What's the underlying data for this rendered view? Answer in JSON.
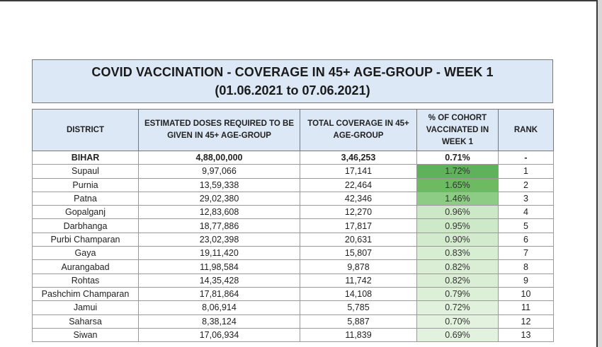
{
  "title": {
    "line1": "COVID VACCINATION -  COVERAGE IN 45+ AGE-GROUP - WEEK 1",
    "line2": "(01.06.2021 to 07.06.2021)"
  },
  "table": {
    "headers": [
      "DISTRICT",
      "ESTIMATED DOSES REQUIRED TO BE GIVEN IN 45+ AGE-GROUP",
      "TOTAL COVERAGE IN 45+ AGE-GROUP",
      "% OF COHORT VACCINATED IN WEEK 1",
      "RANK"
    ],
    "state_row": {
      "district": "BIHAR",
      "doses": "4,88,00,000",
      "coverage": "3,46,253",
      "pct": "0.71%",
      "rank": "-"
    },
    "rows": [
      {
        "district": "Supaul",
        "doses": "9,97,066",
        "coverage": "17,141",
        "pct": "1.72%",
        "rank": "1",
        "shade": "#5fb25a"
      },
      {
        "district": "Purnia",
        "doses": "13,59,338",
        "coverage": "22,464",
        "pct": "1.65%",
        "rank": "2",
        "shade": "#6cba62"
      },
      {
        "district": "Patna",
        "doses": "29,02,380",
        "coverage": "42,346",
        "pct": "1.46%",
        "rank": "3",
        "shade": "#8ccc84"
      },
      {
        "district": "Gopalganj",
        "doses": "12,83,608",
        "coverage": "12,270",
        "pct": "0.96%",
        "rank": "4",
        "shade": "#cce8c6"
      },
      {
        "district": "Darbhanga",
        "doses": "18,77,886",
        "coverage": "17,817",
        "pct": "0.95%",
        "rank": "5",
        "shade": "#cee9c8"
      },
      {
        "district": "Purbi Champaran",
        "doses": "23,02,398",
        "coverage": "20,631",
        "pct": "0.90%",
        "rank": "6",
        "shade": "#d3ebcd"
      },
      {
        "district": "Gaya",
        "doses": "19,11,420",
        "coverage": "15,807",
        "pct": "0.83%",
        "rank": "7",
        "shade": "#d8eed3"
      },
      {
        "district": "Aurangabad",
        "doses": "11,98,584",
        "coverage": "9,878",
        "pct": "0.82%",
        "rank": "8",
        "shade": "#d9eed4"
      },
      {
        "district": "Rohtas",
        "doses": "14,35,428",
        "coverage": "11,742",
        "pct": "0.82%",
        "rank": "9",
        "shade": "#d9eed4"
      },
      {
        "district": "Pashchim Champaran",
        "doses": "17,81,864",
        "coverage": "14,108",
        "pct": "0.79%",
        "rank": "10",
        "shade": "#dcefd7"
      },
      {
        "district": "Jamui",
        "doses": "8,06,914",
        "coverage": "5,785",
        "pct": "0.72%",
        "rank": "11",
        "shade": "#e0f1dc"
      },
      {
        "district": "Saharsa",
        "doses": "8,38,124",
        "coverage": "5,887",
        "pct": "0.70%",
        "rank": "12",
        "shade": "#e2f2de"
      },
      {
        "district": "Siwan",
        "doses": "17,06,934",
        "coverage": "11,839",
        "pct": "0.69%",
        "rank": "13",
        "shade": "#e3f2df"
      }
    ]
  }
}
